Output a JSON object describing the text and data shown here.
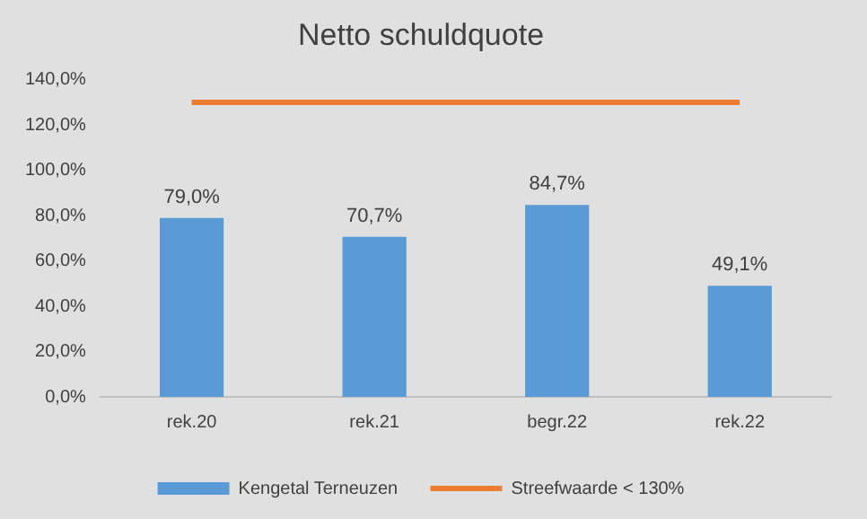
{
  "chart_data": {
    "type": "bar",
    "title": "Netto schuldquote",
    "categories": [
      "rek.20",
      "rek.21",
      "begr.22",
      "rek.22"
    ],
    "series": [
      {
        "name": "Kengetal Terneuzen",
        "color": "#5b9bd5",
        "values": [
          79.0,
          70.7,
          84.7,
          49.1
        ],
        "value_labels": [
          "79,0%",
          "70,7%",
          "84,7%",
          "49,1%"
        ]
      },
      {
        "name": "Streefwaarde < 130%",
        "type": "line",
        "color": "#ed7d31",
        "values": [
          130,
          130,
          130,
          130
        ]
      }
    ],
    "ylim": [
      0,
      140
    ],
    "yticks": [
      {
        "value": 0,
        "label": "0,0%"
      },
      {
        "value": 20,
        "label": "20,0%"
      },
      {
        "value": 40,
        "label": "40,0%"
      },
      {
        "value": 60,
        "label": "60,0%"
      },
      {
        "value": 80,
        "label": "80,0%"
      },
      {
        "value": 100,
        "label": "100,0%"
      },
      {
        "value": 120,
        "label": "120,0%"
      },
      {
        "value": 140,
        "label": "140,0%"
      }
    ],
    "grid": false,
    "legend": "bottom",
    "marker": "none",
    "line_style": "solid"
  }
}
